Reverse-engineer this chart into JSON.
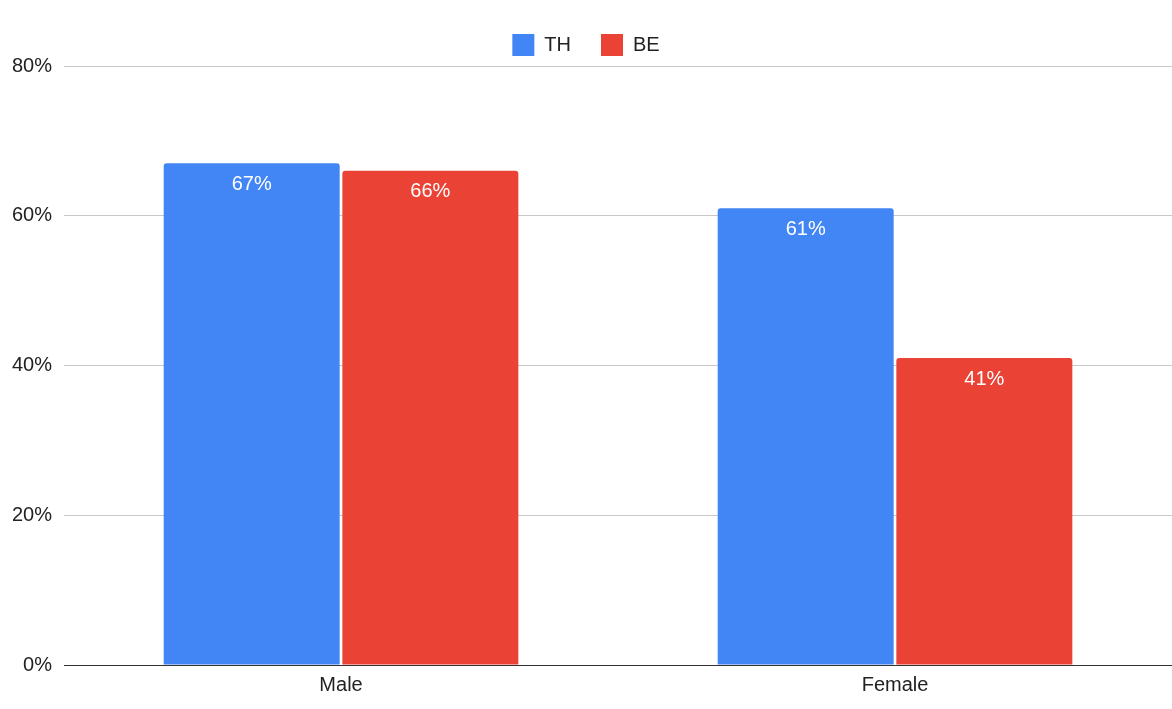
{
  "chart_data": {
    "type": "bar",
    "categories": [
      "Male",
      "Female"
    ],
    "series": [
      {
        "name": "TH",
        "color": "#4285f4",
        "values": [
          67,
          61
        ],
        "value_labels": [
          "67%",
          "61%"
        ]
      },
      {
        "name": "BE",
        "color": "#ea4335",
        "values": [
          66,
          41
        ],
        "value_labels": [
          "66%",
          "41%"
        ]
      }
    ],
    "ylim": [
      0,
      80
    ],
    "yticks": [
      {
        "value": 0,
        "label": "0%"
      },
      {
        "value": 20,
        "label": "20%"
      },
      {
        "value": 40,
        "label": "40%"
      },
      {
        "value": 60,
        "label": "60%"
      },
      {
        "value": 80,
        "label": "80%"
      }
    ],
    "grid": "y",
    "legend": "top"
  }
}
